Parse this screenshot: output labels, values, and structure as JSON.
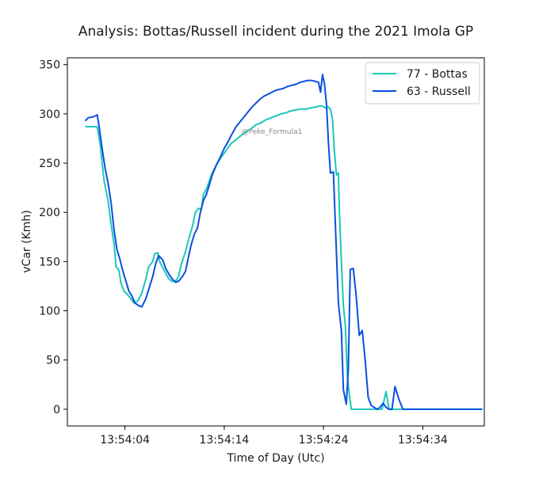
{
  "chart_data": {
    "type": "line",
    "title": "Analysis: Bottas/Russell incident during the 2021 Imola GP",
    "xlabel": "Time of Day (Utc)",
    "ylabel": "vCar (Kmh)",
    "x_unit": "seconds after 13:54:00",
    "xlim": [
      -1.8,
      40.2
    ],
    "ylim": [
      -17,
      357
    ],
    "x_ticks": [
      {
        "value": 4,
        "label": "13:54:04"
      },
      {
        "value": 14,
        "label": "13:54:14"
      },
      {
        "value": 24,
        "label": "13:54:24"
      },
      {
        "value": 34,
        "label": "13:54:34"
      }
    ],
    "y_ticks": [
      0,
      50,
      100,
      150,
      200,
      250,
      300,
      350
    ],
    "grid": false,
    "legend": "top-right",
    "annotations": [
      "@Peke_Formula1"
    ],
    "series": [
      {
        "name": "77 - Bottas",
        "color": "#1bc8b8",
        "points": [
          [
            0.0,
            287
          ],
          [
            1.2,
            287
          ],
          [
            1.5,
            270
          ],
          [
            1.9,
            232
          ],
          [
            2.3,
            212
          ],
          [
            2.6,
            188
          ],
          [
            2.9,
            168
          ],
          [
            3.1,
            145
          ],
          [
            3.4,
            141
          ],
          [
            3.6,
            128
          ],
          [
            3.9,
            120
          ],
          [
            4.3,
            116
          ],
          [
            4.6,
            112
          ],
          [
            4.9,
            108
          ],
          [
            5.3,
            110
          ],
          [
            5.7,
            118
          ],
          [
            6.1,
            132
          ],
          [
            6.4,
            145
          ],
          [
            6.8,
            150
          ],
          [
            7.0,
            158
          ],
          [
            7.3,
            159
          ],
          [
            7.5,
            150
          ],
          [
            8.0,
            140
          ],
          [
            8.4,
            133
          ],
          [
            8.7,
            130
          ],
          [
            9.1,
            130
          ],
          [
            9.4,
            135
          ],
          [
            9.7,
            148
          ],
          [
            10.1,
            160
          ],
          [
            10.4,
            172
          ],
          [
            10.8,
            186
          ],
          [
            11.1,
            200
          ],
          [
            11.4,
            204
          ],
          [
            11.7,
            203
          ],
          [
            11.9,
            218
          ],
          [
            12.3,
            226
          ],
          [
            12.7,
            238
          ],
          [
            13.2,
            248
          ],
          [
            13.7,
            256
          ],
          [
            14.2,
            263
          ],
          [
            14.7,
            270
          ],
          [
            15.2,
            274
          ],
          [
            15.7,
            278
          ],
          [
            16.2,
            282
          ],
          [
            16.7,
            285
          ],
          [
            17.2,
            289
          ],
          [
            17.7,
            291
          ],
          [
            18.2,
            294
          ],
          [
            18.7,
            296
          ],
          [
            19.2,
            298
          ],
          [
            19.7,
            300
          ],
          [
            20.2,
            301
          ],
          [
            20.7,
            303
          ],
          [
            21.2,
            304
          ],
          [
            21.7,
            305
          ],
          [
            22.2,
            305
          ],
          [
            22.7,
            306
          ],
          [
            23.2,
            307
          ],
          [
            23.6,
            308
          ],
          [
            23.9,
            308
          ],
          [
            24.2,
            306
          ],
          [
            24.5,
            307
          ],
          [
            24.7,
            305
          ],
          [
            24.9,
            295
          ],
          [
            25.1,
            262
          ],
          [
            25.3,
            238
          ],
          [
            25.5,
            240
          ],
          [
            25.6,
            200
          ],
          [
            25.8,
            150
          ],
          [
            26.0,
            105
          ],
          [
            26.2,
            85
          ],
          [
            26.4,
            35
          ],
          [
            26.6,
            15
          ],
          [
            26.8,
            0
          ],
          [
            29.2,
            0
          ],
          [
            29.6,
            0
          ],
          [
            29.9,
            0
          ],
          [
            30.3,
            18
          ],
          [
            30.6,
            0
          ],
          [
            31.2,
            0
          ],
          [
            31.5,
            0
          ],
          [
            31.8,
            0
          ],
          [
            32.2,
            0
          ],
          [
            40.0,
            0
          ]
        ]
      },
      {
        "name": "63 - Russell",
        "color": "#0a4fe0",
        "points": [
          [
            0.0,
            293
          ],
          [
            0.3,
            296
          ],
          [
            0.8,
            297
          ],
          [
            1.2,
            299
          ],
          [
            1.4,
            287
          ],
          [
            1.7,
            265
          ],
          [
            2.0,
            245
          ],
          [
            2.3,
            230
          ],
          [
            2.6,
            210
          ],
          [
            2.9,
            182
          ],
          [
            3.2,
            162
          ],
          [
            3.5,
            152
          ],
          [
            3.8,
            140
          ],
          [
            4.1,
            130
          ],
          [
            4.4,
            120
          ],
          [
            4.7,
            115
          ],
          [
            5.0,
            108
          ],
          [
            5.4,
            105
          ],
          [
            5.7,
            104
          ],
          [
            6.1,
            112
          ],
          [
            6.5,
            125
          ],
          [
            6.8,
            135
          ],
          [
            7.1,
            148
          ],
          [
            7.4,
            156
          ],
          [
            7.8,
            152
          ],
          [
            8.1,
            143
          ],
          [
            8.5,
            136
          ],
          [
            8.8,
            132
          ],
          [
            9.1,
            129
          ],
          [
            9.4,
            130
          ],
          [
            9.8,
            135
          ],
          [
            10.1,
            140
          ],
          [
            10.4,
            155
          ],
          [
            10.7,
            168
          ],
          [
            11.0,
            178
          ],
          [
            11.3,
            184
          ],
          [
            11.6,
            200
          ],
          [
            11.9,
            212
          ],
          [
            12.2,
            218
          ],
          [
            12.5,
            228
          ],
          [
            12.8,
            238
          ],
          [
            13.2,
            248
          ],
          [
            13.6,
            256
          ],
          [
            14.0,
            265
          ],
          [
            14.4,
            272
          ],
          [
            14.8,
            280
          ],
          [
            15.2,
            287
          ],
          [
            15.6,
            292
          ],
          [
            16.0,
            297
          ],
          [
            16.4,
            302
          ],
          [
            16.8,
            307
          ],
          [
            17.2,
            311
          ],
          [
            17.6,
            315
          ],
          [
            18.0,
            318
          ],
          [
            18.4,
            320
          ],
          [
            18.8,
            322
          ],
          [
            19.2,
            324
          ],
          [
            19.6,
            325
          ],
          [
            20.0,
            326
          ],
          [
            20.4,
            328
          ],
          [
            20.8,
            329
          ],
          [
            21.2,
            330
          ],
          [
            21.6,
            332
          ],
          [
            22.0,
            333
          ],
          [
            22.4,
            334
          ],
          [
            22.8,
            334
          ],
          [
            23.2,
            333
          ],
          [
            23.5,
            332
          ],
          [
            23.7,
            322
          ],
          [
            23.9,
            340
          ],
          [
            24.1,
            330
          ],
          [
            24.3,
            310
          ],
          [
            24.5,
            270
          ],
          [
            24.7,
            240
          ],
          [
            25.0,
            241
          ],
          [
            25.3,
            160
          ],
          [
            25.5,
            108
          ],
          [
            25.8,
            80
          ],
          [
            26.0,
            20
          ],
          [
            26.3,
            5
          ],
          [
            26.5,
            40
          ],
          [
            26.7,
            142
          ],
          [
            27.0,
            143
          ],
          [
            27.3,
            115
          ],
          [
            27.6,
            75
          ],
          [
            27.9,
            80
          ],
          [
            28.2,
            50
          ],
          [
            28.5,
            12
          ],
          [
            28.8,
            4
          ],
          [
            29.1,
            2
          ],
          [
            29.4,
            0
          ],
          [
            29.7,
            2
          ],
          [
            30.0,
            6
          ],
          [
            30.3,
            2
          ],
          [
            30.6,
            0
          ],
          [
            30.9,
            0
          ],
          [
            31.2,
            23
          ],
          [
            31.6,
            10
          ],
          [
            32.0,
            0
          ],
          [
            32.4,
            0
          ],
          [
            40.0,
            0
          ]
        ]
      }
    ]
  }
}
